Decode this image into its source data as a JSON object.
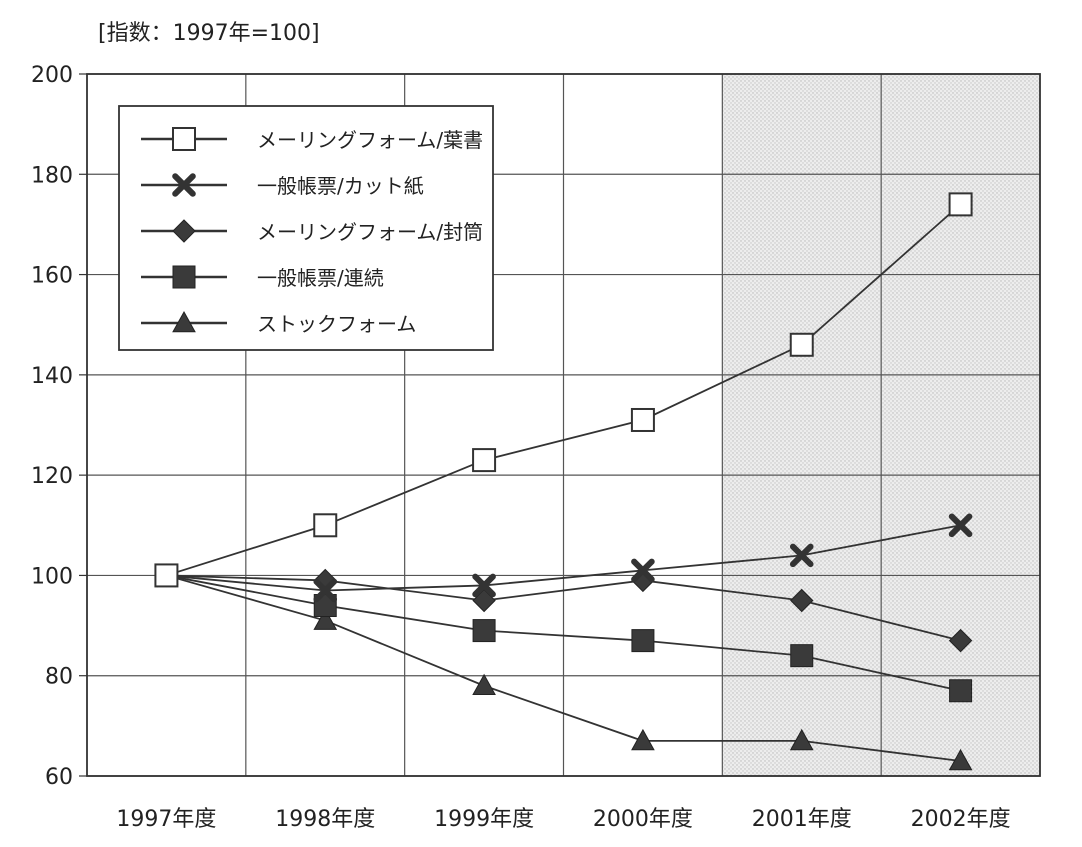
{
  "chart_data": {
    "type": "line",
    "title": "",
    "unit_label": "[指数：1997年=100]",
    "xlabel": "",
    "ylabel": "",
    "categories": [
      "1997年度",
      "1998年度",
      "1999年度",
      "2000年度",
      "2001年度",
      "2002年度"
    ],
    "ylim": [
      60,
      200
    ],
    "yticks": [
      60,
      80,
      100,
      120,
      140,
      160,
      180,
      200
    ],
    "grid": true,
    "shaded_categories": [
      "2001年度",
      "2002年度"
    ],
    "legend_position": "top-left",
    "series": [
      {
        "name": "メーリングフォーム/葉書",
        "marker": "open-square",
        "values": [
          100,
          110,
          123,
          131,
          146,
          174
        ]
      },
      {
        "name": "一般帳票/カット紙",
        "marker": "x",
        "values": [
          100,
          97,
          98,
          101,
          104,
          110
        ]
      },
      {
        "name": "メーリングフォーム/封筒",
        "marker": "diamond",
        "values": [
          100,
          99,
          95,
          99,
          95,
          87
        ]
      },
      {
        "name": "一般帳票/連続",
        "marker": "filled-square",
        "values": [
          100,
          94,
          89,
          87,
          84,
          77
        ]
      },
      {
        "name": "ストックフォーム",
        "marker": "triangle",
        "values": [
          100,
          91,
          78,
          67,
          67,
          63
        ]
      }
    ]
  }
}
